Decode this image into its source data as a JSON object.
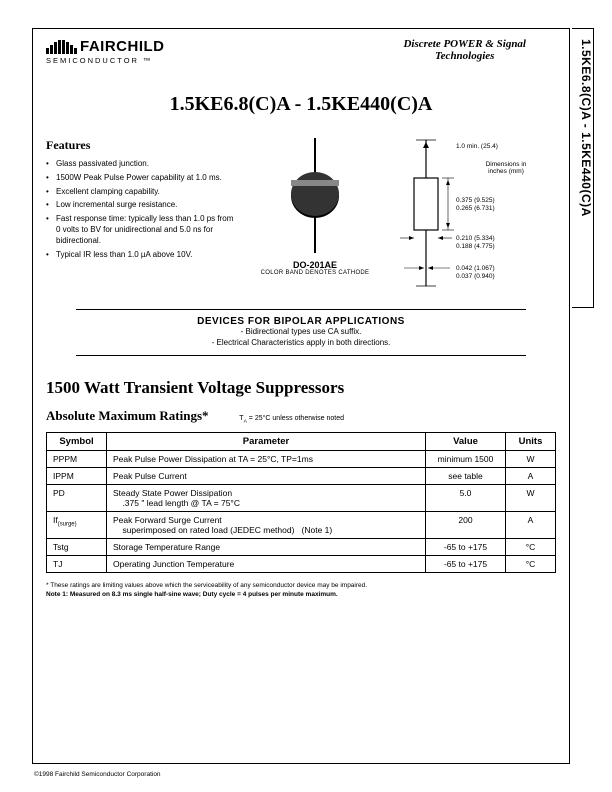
{
  "side_tab": "1.5KE6.8(C)A - 1.5KE440(C)A",
  "logo": {
    "brand": "FAIRCHILD",
    "sub": "SEMICONDUCTOR ™"
  },
  "header_tagline_l1": "Discrete POWER & Signal",
  "header_tagline_l2": "Technologies",
  "title": "1.5KE6.8(C)A - 1.5KE440(C)A",
  "features_head": "Features",
  "features": [
    "Glass passivated junction.",
    "1500W Peak Pulse Power capability at 1.0 ms.",
    "Excellent clamping capability.",
    "Low incremental surge resistance.",
    "Fast response time: typically less than 1.0 ps from 0 volts to BV for unidirectional and 5.0 ns for bidirectional.",
    "Typical IR less than 1.0 µA above 10V."
  ],
  "package": {
    "name": "DO-201AE",
    "note": "COLOR BAND DENOTES CATHODE"
  },
  "dims": {
    "lead": "1.0 min.  (25.4)",
    "note": "Dimensions in inches (mm)",
    "body_l1": "0.375  (9.525)",
    "body_l2": "0.265  (6.731)",
    "dia_l1": "0.210  (5.334)",
    "dia_l2": "0.188  (4.775)",
    "lead_d1": "0.042  (1.067)",
    "lead_d2": "0.037  (0.940)"
  },
  "bipolar": {
    "head": "DEVICES FOR BIPOLAR APPLICATIONS",
    "l1": "- Bidirectional  types use CA suffix.",
    "l2": "- Electrical Characteristics apply in both directions."
  },
  "sub_title": "1500 Watt Transient Voltage Suppressors",
  "ratings_head": "Absolute Maximum Ratings*",
  "ratings_cond": "TA = 25°C unless otherwise noted",
  "ratings_columns": [
    "Symbol",
    "Parameter",
    "Value",
    "Units"
  ],
  "ratings_rows": [
    {
      "sym": "PPPM",
      "param": "Peak Pulse Power Dissipation at TA = 25°C, TP=1ms",
      "val": "minimum 1500",
      "unit": "W"
    },
    {
      "sym": "IPPM",
      "param": "Peak Pulse Current",
      "val": "see table",
      "unit": "A"
    },
    {
      "sym": "PD",
      "param": "Steady State Power Dissipation<br>&nbsp;&nbsp;&nbsp;&nbsp;.375 \" lead length @ TA = 75°C",
      "val": "5.0",
      "unit": "W"
    },
    {
      "sym": "If(surge)",
      "param": "Peak Forward Surge Current<br>&nbsp;&nbsp;&nbsp;&nbsp;superimposed on rated load (JEDEC method)&nbsp;&nbsp;&nbsp;(Note 1)",
      "val": "200",
      "unit": "A"
    },
    {
      "sym": "Tstg",
      "param": "Storage Temperature Range",
      "val": "-65 to +175",
      "unit": "°C"
    },
    {
      "sym": "TJ",
      "param": "Operating Junction Temperature",
      "val": "-65 to +175",
      "unit": "°C"
    }
  ],
  "footnote_ast": "* These ratings are limiting values above which the serviceability of any semiconductor device may be impaired.",
  "footnote_n1": "Note 1: Measured on 8.3 ms single half-sine wave; Duty cycle = 4 pulses per minute maximum.",
  "copyright": "©1998 Fairchild Semiconductor Corporation",
  "colors": {
    "text": "#000000",
    "bg": "#ffffff"
  }
}
